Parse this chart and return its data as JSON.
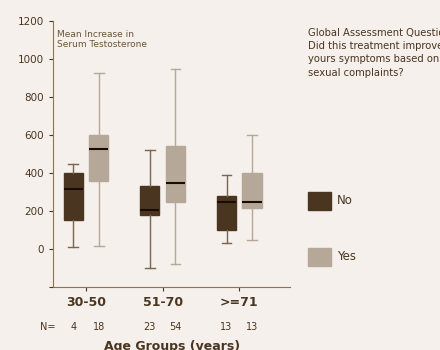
{
  "title_inner": "Mean Increase in\nSerum Testosterone",
  "xlabel": "Age Groups (years)",
  "age_groups": [
    "30-50",
    "51-70",
    ">=71"
  ],
  "n_values": [
    "4",
    "18",
    "23",
    "54",
    "13",
    "13"
  ],
  "boxes": {
    "no": {
      "positions": [
        1,
        4,
        7
      ],
      "whislo": [
        10,
        -100,
        30
      ],
      "q1": [
        155,
        180,
        100
      ],
      "med": [
        315,
        205,
        245
      ],
      "q3": [
        400,
        330,
        280
      ],
      "whishi": [
        450,
        520,
        390
      ]
    },
    "yes": {
      "positions": [
        2,
        5,
        8
      ],
      "whislo": [
        15,
        -80,
        50
      ],
      "q1": [
        360,
        250,
        215
      ],
      "med": [
        525,
        345,
        245
      ],
      "q3": [
        600,
        540,
        400
      ],
      "whishi": [
        925,
        950,
        600
      ]
    }
  },
  "ylim": [
    -200,
    1200
  ],
  "yticks": [
    -200,
    0,
    200,
    400,
    600,
    800,
    1000,
    1200
  ],
  "yticklabels": [
    "",
    "0",
    "200",
    "400",
    "600",
    "800",
    "1000",
    "1200"
  ],
  "bg_color": "#f5f0eb",
  "box_no_color": "#4a3520",
  "box_yes_color": "#b5a898",
  "median_color": "#1a0a00",
  "whisker_color_no": "#7a6550",
  "whisker_color_yes": "#b5a898",
  "legend_title": "Global Assessment Question:\nDid this treatment improve\nyours symptoms based on\nsexual complaints?",
  "legend_no": "No",
  "legend_yes": "Yes",
  "group_xticks": [
    1.5,
    4.5,
    7.5
  ],
  "positions_all": [
    1,
    2,
    4,
    5,
    7,
    8
  ],
  "box_width": 0.75,
  "xlim": [
    0.2,
    9.5
  ]
}
